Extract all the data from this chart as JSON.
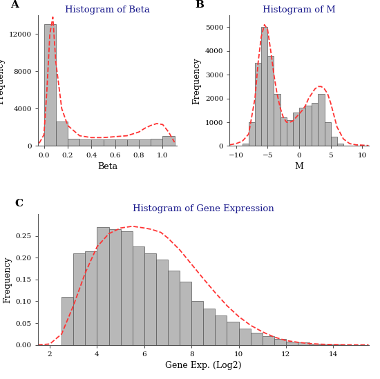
{
  "panel_A": {
    "title": "Histogram of Beta",
    "xlabel": "Beta",
    "ylabel": "Frequency",
    "bin_left": [
      0.0,
      0.1,
      0.2,
      0.3,
      0.4,
      0.5,
      0.6,
      0.7,
      0.8,
      0.9,
      1.0
    ],
    "bin_width": 0.1,
    "heights": [
      13000,
      2600,
      800,
      700,
      680,
      700,
      720,
      700,
      730,
      800,
      1100
    ],
    "xlim": [
      -0.05,
      1.12
    ],
    "ylim": [
      0,
      14000
    ],
    "yticks": [
      0,
      4000,
      8000,
      12000
    ],
    "xticks": [
      0.0,
      0.2,
      0.4,
      0.6,
      0.8,
      1.0
    ],
    "density_x": [
      -0.04,
      0.0,
      0.025,
      0.05,
      0.075,
      0.1,
      0.15,
      0.2,
      0.3,
      0.4,
      0.5,
      0.6,
      0.7,
      0.8,
      0.85,
      0.9,
      0.95,
      1.0,
      1.05,
      1.1
    ],
    "density_y": [
      300,
      1200,
      6000,
      12000,
      13800,
      9000,
      4000,
      2200,
      1100,
      900,
      900,
      1000,
      1100,
      1500,
      1900,
      2200,
      2400,
      2300,
      1500,
      400
    ]
  },
  "panel_B": {
    "title": "Histogram of M",
    "xlabel": "M",
    "ylabel": "Frequency",
    "bin_left": [
      -10,
      -9,
      -8,
      -7,
      -6,
      -5,
      -4,
      -3,
      -2,
      -1,
      0,
      1,
      2,
      3,
      4,
      5,
      6,
      7,
      8,
      9
    ],
    "bin_width": 1.0,
    "heights": [
      0,
      100,
      1000,
      3500,
      5000,
      3800,
      2200,
      1200,
      1100,
      1400,
      1600,
      1700,
      1800,
      2200,
      1000,
      400,
      100,
      20,
      0,
      0
    ],
    "xlim": [
      -11,
      11
    ],
    "ylim": [
      0,
      5500
    ],
    "yticks": [
      0,
      1000,
      2000,
      3000,
      4000,
      5000
    ],
    "xticks": [
      -10,
      -5,
      0,
      5,
      10
    ],
    "density_x": [
      -11,
      -10,
      -9,
      -8,
      -7,
      -6.5,
      -6,
      -5.5,
      -5,
      -4.5,
      -4,
      -3.5,
      -3,
      -2.5,
      -2,
      -1.5,
      -1,
      -0.5,
      0,
      0.5,
      1,
      1.5,
      2,
      2.5,
      3,
      3.5,
      4,
      4.5,
      5,
      5.5,
      6,
      7,
      8,
      9,
      11
    ],
    "density_y": [
      50,
      100,
      200,
      500,
      2000,
      3500,
      4600,
      5100,
      4900,
      4000,
      3000,
      2200,
      1600,
      1200,
      1000,
      1000,
      1050,
      1200,
      1350,
      1500,
      1700,
      2000,
      2200,
      2400,
      2500,
      2500,
      2400,
      2200,
      1800,
      1300,
      800,
      300,
      100,
      50,
      20
    ]
  },
  "panel_C": {
    "title": "Histogram of Gene Expression",
    "xlabel": "Gene Exp. (Log2)",
    "ylabel": "Frequency",
    "bin_left": [
      2.0,
      2.5,
      3.0,
      3.5,
      4.0,
      4.5,
      5.0,
      5.5,
      6.0,
      6.5,
      7.0,
      7.5,
      8.0,
      8.5,
      9.0,
      9.5,
      10.0,
      10.5,
      11.0,
      11.5,
      12.0,
      12.5,
      13.0,
      13.5,
      14.0
    ],
    "bin_width": 0.5,
    "heights": [
      0.0,
      0.11,
      0.21,
      0.215,
      0.27,
      0.265,
      0.26,
      0.225,
      0.21,
      0.195,
      0.17,
      0.145,
      0.1,
      0.083,
      0.068,
      0.053,
      0.038,
      0.028,
      0.02,
      0.013,
      0.008,
      0.005,
      0.003,
      0.001,
      0.0005
    ],
    "xlim": [
      1.5,
      15.5
    ],
    "ylim": [
      0,
      0.3
    ],
    "yticks": [
      0.0,
      0.05,
      0.1,
      0.15,
      0.2,
      0.25
    ],
    "xticks": [
      2,
      4,
      6,
      8,
      10,
      12,
      14
    ],
    "density_x": [
      1.5,
      2.0,
      2.5,
      3.0,
      3.5,
      4.0,
      4.5,
      5.0,
      5.5,
      6.0,
      6.3,
      6.7,
      7.0,
      7.5,
      8.0,
      8.5,
      9.0,
      9.5,
      10.0,
      10.5,
      11.0,
      11.5,
      12.0,
      12.5,
      13.0,
      13.5,
      14.0,
      14.5,
      15.0,
      15.5
    ],
    "density_y": [
      0.0,
      0.002,
      0.025,
      0.09,
      0.165,
      0.225,
      0.255,
      0.268,
      0.272,
      0.268,
      0.265,
      0.258,
      0.245,
      0.218,
      0.185,
      0.152,
      0.12,
      0.09,
      0.065,
      0.045,
      0.03,
      0.018,
      0.01,
      0.006,
      0.003,
      0.0015,
      0.0007,
      0.0003,
      0.0001,
      0.0001
    ]
  },
  "bar_color": "#b8b8b8",
  "bar_edgecolor": "#555555",
  "density_color": "#ff3333",
  "label_color": "#1a1a8c",
  "background_color": "#ffffff"
}
